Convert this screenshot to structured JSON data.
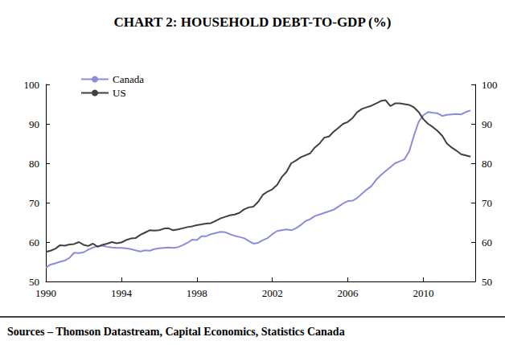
{
  "chart_data": {
    "type": "line",
    "title": "CHART 2: HOUSEHOLD DEBT-TO-GDP (%)",
    "source": "Sources – Thomson Datastream, Capital Economics, Statistics Canada",
    "x": [
      1990,
      1990.25,
      1990.5,
      1990.75,
      1991,
      1991.25,
      1991.5,
      1991.75,
      1992,
      1992.25,
      1992.5,
      1992.75,
      1993,
      1993.25,
      1993.5,
      1993.75,
      1994,
      1994.25,
      1994.5,
      1994.75,
      1995,
      1995.25,
      1995.5,
      1995.75,
      1996,
      1996.25,
      1996.5,
      1996.75,
      1997,
      1997.25,
      1997.5,
      1997.75,
      1998,
      1998.25,
      1998.5,
      1998.75,
      1999,
      1999.25,
      1999.5,
      1999.75,
      2000,
      2000.25,
      2000.5,
      2000.75,
      2001,
      2001.25,
      2001.5,
      2001.75,
      2002,
      2002.25,
      2002.5,
      2002.75,
      2003,
      2003.25,
      2003.5,
      2003.75,
      2004,
      2004.25,
      2004.5,
      2004.75,
      2005,
      2005.25,
      2005.5,
      2005.75,
      2006,
      2006.25,
      2006.5,
      2006.75,
      2007,
      2007.25,
      2007.5,
      2007.75,
      2008,
      2008.25,
      2008.5,
      2008.75,
      2009,
      2009.25,
      2009.5,
      2009.75,
      2010,
      2010.25,
      2010.5,
      2010.75,
      2011,
      2011.25,
      2011.5,
      2011.75,
      2012,
      2012.25,
      2012.5
    ],
    "series": [
      {
        "name": "Canada",
        "color": "#8c8cdc",
        "values": [
          53.5,
          54.3,
          54.6,
          55.0,
          55.3,
          56.0,
          57.3,
          57.2,
          57.4,
          58.1,
          58.6,
          59.0,
          59.1,
          58.8,
          58.6,
          58.5,
          58.5,
          58.4,
          58.2,
          57.9,
          57.6,
          57.9,
          57.8,
          58.2,
          58.4,
          58.5,
          58.6,
          58.5,
          58.7,
          59.2,
          59.8,
          60.6,
          60.5,
          61.5,
          61.5,
          62.0,
          62.3,
          62.6,
          62.5,
          62.0,
          61.6,
          61.3,
          61.0,
          60.3,
          59.6,
          59.8,
          60.5,
          61.0,
          62.0,
          62.8,
          63.0,
          63.2,
          63.0,
          63.5,
          64.3,
          65.3,
          65.8,
          66.6,
          67.0,
          67.4,
          67.8,
          68.2,
          69.0,
          69.8,
          70.4,
          70.5,
          71.2,
          72.3,
          73.3,
          74.2,
          75.8,
          77.0,
          78.0,
          79.0,
          80.0,
          80.5,
          81.0,
          83.0,
          87.0,
          90.5,
          92.2,
          93.0,
          92.8,
          92.7,
          92.0,
          92.3,
          92.4,
          92.5,
          92.4,
          93.0,
          93.4
        ]
      },
      {
        "name": "US",
        "color": "#404040",
        "values": [
          57.5,
          57.8,
          58.3,
          59.2,
          59.1,
          59.4,
          59.5,
          60.0,
          59.3,
          59.0,
          59.6,
          58.8,
          59.3,
          59.6,
          60.0,
          59.7,
          59.9,
          60.5,
          60.9,
          61.0,
          61.8,
          62.4,
          63.0,
          62.9,
          63.0,
          63.4,
          63.5,
          63.0,
          63.2,
          63.5,
          63.8,
          64.0,
          64.3,
          64.5,
          64.7,
          64.8,
          65.4,
          66.0,
          66.4,
          66.8,
          67.0,
          67.4,
          68.3,
          68.8,
          69.0,
          70.2,
          72.0,
          72.8,
          73.4,
          74.5,
          76.5,
          77.8,
          80.0,
          80.7,
          81.5,
          82.0,
          82.5,
          84.0,
          85.0,
          86.5,
          86.8,
          88.0,
          89.0,
          90.0,
          90.5,
          91.5,
          93.0,
          93.8,
          94.2,
          94.6,
          95.2,
          95.8,
          96.0,
          94.5,
          95.2,
          95.2,
          95.0,
          94.8,
          94.2,
          93.0,
          91.2,
          90.0,
          89.2,
          88.2,
          87.0,
          85.0,
          84.0,
          83.2,
          82.3,
          82.0,
          81.7
        ]
      }
    ],
    "xlim": [
      1990,
      2012.75
    ],
    "xticks": [
      1990,
      1994,
      1998,
      2002,
      2006,
      2010
    ],
    "ylim": [
      50,
      100
    ],
    "yticks": [
      50,
      60,
      70,
      80,
      90,
      100
    ],
    "y2lim": [
      50,
      100
    ],
    "y2ticks": [
      50,
      60,
      70,
      80,
      90,
      100
    ],
    "grid": false,
    "legend": "top-left"
  }
}
